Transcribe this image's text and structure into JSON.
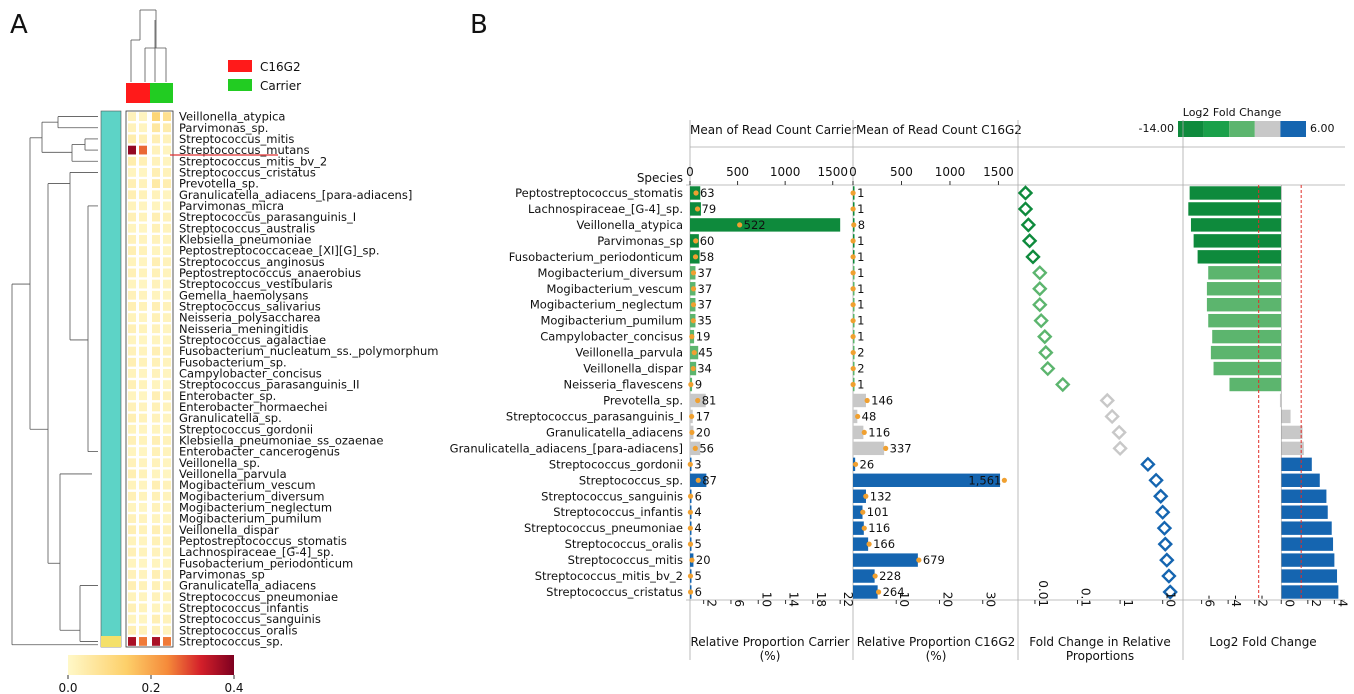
{
  "panels": {
    "a_label": "A",
    "b_label": "B"
  },
  "panel_a": {
    "legend": [
      {
        "label": "C16G2",
        "color": "#ff1a1a"
      },
      {
        "label": "Carrier",
        "color": "#22cc22"
      }
    ],
    "colorbar": {
      "min_label": "0.0",
      "mid_label": "0.2",
      "max_label": "0.4",
      "min": 0.0,
      "max": 0.4
    },
    "annotated_row": "Streptococcus_mutans",
    "heatmap_rows": [
      "Veillonella_atypica",
      "Parvimonas_sp.",
      "Streptococcus_mitis",
      "Streptococcus_mutans",
      "Streptococcus_mitis_bv_2",
      "Streptococcus_cristatus",
      "Prevotella_sp.",
      "Granulicatella_adiacens_[para-adiacens]",
      "Parvimonas_micra",
      "Streptococcus_parasanguinis_I",
      "Streptococcus_australis",
      "Klebsiella_pneumoniae",
      "Peptostreptococcaceae_[XI][G]_sp.",
      "Streptococcus_anginosus",
      "Peptostreptococcus_anaerobius",
      "Streptococcus_vestibularis",
      "Gemella_haemolysans",
      "Streptococcus_salivarius",
      "Neisseria_polysaccharea",
      "Neisseria_meningitidis",
      "Streptococcus_agalactiae",
      "Fusobacterium_nucleatum_ss._polymorphum",
      "Fusobacterium_sp.",
      "Campylobacter_concisus",
      "Streptococcus_parasanguinis_II",
      "Enterobacter_sp.",
      "Enterobacter_hormaechei",
      "Granulicatella_sp.",
      "Streptococcus_gordonii",
      "Klebsiella_pneumoniae_ss_ozaenae",
      "Enterobacter_cancerogenus",
      "Veillonella_sp.",
      "Veillonella_parvula",
      "Mogibacterium_vescum",
      "Mogibacterium_diversum",
      "Mogibacterium_neglectum",
      "Mogibacterium_pumilum",
      "Veillonella_dispar",
      "Peptostreptococcus_stomatis",
      "Lachnospiraceae_[G-4]_sp.",
      "Fusobacterium_periodonticum",
      "Parvimonas_sp",
      "Granulicatella_adiacens",
      "Streptococcus_pneumoniae",
      "Streptococcus_infantis",
      "Streptococcus_sanguinis",
      "Streptococcus_oralis",
      "Streptococcus_sp."
    ]
  },
  "chart_data": {
    "type": "bar",
    "species_header": "Species",
    "species": [
      "Peptostreptococcus_stomatis",
      "Lachnospiraceae_[G-4]_sp.",
      "Veillonella_atypica",
      "Parvimonas_sp",
      "Fusobacterium_periodonticum",
      "Mogibacterium_diversum",
      "Mogibacterium_vescum",
      "Mogibacterium_neglectum",
      "Mogibacterium_pumilum",
      "Campylobacter_concisus",
      "Veillonella_parvula",
      "Veillonella_dispar",
      "Neisseria_flavescens",
      "Prevotella_sp.",
      "Streptococcus_parasanguinis_I",
      "Granulicatella_adiacens",
      "Granulicatella_adiacens_[para-adiacens]",
      "Streptococcus_gordonii",
      "Streptococcus_sp.",
      "Streptococcus_sanguinis",
      "Streptococcus_infantis",
      "Streptococcus_pneumoniae",
      "Streptococcus_oralis",
      "Streptococcus_mitis",
      "Streptococcus_mitis_bv_2",
      "Streptococcus_cristatus"
    ],
    "group": [
      "Carrier",
      "Carrier",
      "Carrier",
      "Carrier",
      "Carrier",
      "Carrier",
      "Carrier",
      "Carrier",
      "Carrier",
      "Carrier",
      "Carrier",
      "Carrier",
      "Carrier",
      "Neutral",
      "Neutral",
      "Neutral",
      "Neutral",
      "C16G2",
      "C16G2",
      "C16G2",
      "C16G2",
      "C16G2",
      "C16G2",
      "C16G2",
      "C16G2",
      "C16G2"
    ],
    "colors": {
      "Carrier_strong": "#0e8a3c",
      "Carrier_weak": "#5cb56e",
      "Neutral": "#c8c8c8",
      "C16G2": "#1565b0",
      "dot": "#f0a030",
      "threshold": "#e0302a"
    },
    "carrier": {
      "title": "Mean of Read Count Carrier",
      "xlabel": "Relative Proportion Carrier\n(%)",
      "top_ticks": [
        "0",
        "500",
        "1000",
        "1500"
      ],
      "top_lim": [
        0,
        1650
      ],
      "bottom_ticks": [
        "2",
        "6",
        "10",
        "14",
        "18",
        "22"
      ],
      "bottom_lim": [
        0,
        23
      ],
      "read_counts": [
        63,
        79,
        522,
        60,
        58,
        37,
        37,
        37,
        35,
        19,
        45,
        34,
        9,
        81,
        17,
        20,
        56,
        3,
        87,
        6,
        4,
        4,
        5,
        20,
        5,
        6
      ],
      "count_labels": [
        "63",
        "79",
        "522",
        "60",
        "58",
        "37",
        "37",
        "37",
        "35",
        "19",
        "45",
        "34",
        "9",
        "81",
        "17",
        "20",
        "56",
        "3",
        "87",
        "6",
        "4",
        "4",
        "5",
        "20",
        "5",
        "6"
      ],
      "relative_percent": [
        1.5,
        1.6,
        22.0,
        1.3,
        1.4,
        0.8,
        0.8,
        0.8,
        0.8,
        0.6,
        1.2,
        0.9,
        0.3,
        2.3,
        0.4,
        0.5,
        1.5,
        0.1,
        2.4,
        0.2,
        0.1,
        0.1,
        0.1,
        0.5,
        0.1,
        0.2
      ]
    },
    "c16g2": {
      "title": "Mean of Read Count C16G2",
      "xlabel": "Relative Proportion C16G2\n(%)",
      "top_ticks": [
        "0",
        "500",
        "1000",
        "1500"
      ],
      "top_lim": [
        0,
        1650
      ],
      "bottom_ticks": [
        "10",
        "20",
        "30"
      ],
      "bottom_lim": [
        0,
        37
      ],
      "read_counts": [
        1,
        1,
        8,
        1,
        1,
        1,
        1,
        1,
        1,
        1,
        2,
        2,
        1,
        146,
        48,
        116,
        337,
        26,
        1561,
        132,
        101,
        116,
        166,
        679,
        228,
        264
      ],
      "count_labels": [
        "1",
        "1",
        "8",
        "1",
        "1",
        "1",
        "1",
        "1",
        "1",
        "1",
        "2",
        "2",
        "1",
        "146",
        "48",
        "116",
        "337",
        "26",
        "1,561",
        "132",
        "101",
        "116",
        "166",
        "679",
        "228",
        "264"
      ],
      "relative_percent": [
        0.05,
        0.05,
        0.2,
        0.05,
        0.05,
        0.05,
        0.05,
        0.05,
        0.05,
        0.05,
        0.1,
        0.1,
        0.05,
        3.0,
        1.0,
        2.4,
        7.2,
        0.5,
        34.0,
        3.0,
        2.2,
        2.5,
        3.5,
        15.0,
        5.0,
        5.7
      ]
    },
    "fold_change": {
      "xlabel": "Fold Change in Relative\nProportions",
      "ticks": [
        "0.01",
        "0.1",
        "1",
        "10"
      ],
      "scale": "log",
      "xlim": [
        0.004,
        30
      ],
      "values": [
        0.006,
        0.006,
        0.007,
        0.0075,
        0.009,
        0.013,
        0.013,
        0.013,
        0.014,
        0.017,
        0.018,
        0.02,
        0.045,
        0.5,
        0.65,
        0.95,
        1.0,
        4.5,
        7.0,
        9.0,
        10.0,
        11.0,
        11.5,
        12.5,
        14.0,
        15.0
      ]
    },
    "log2fc": {
      "xlabel": "Log2 Fold Change",
      "ticks": [
        "-6",
        "-4",
        "-2",
        "0",
        "2",
        "4"
      ],
      "xlim": [
        -7.4,
        4.8
      ],
      "thresholds": [
        -1.7,
        1.5
      ],
      "values": [
        -6.9,
        -7.0,
        -6.8,
        -6.6,
        -6.3,
        -5.5,
        -5.6,
        -5.6,
        -5.5,
        -5.2,
        -5.3,
        -5.1,
        -3.9,
        -0.1,
        0.7,
        1.6,
        1.7,
        2.3,
        2.9,
        3.4,
        3.5,
        3.8,
        3.9,
        4.0,
        4.2,
        4.3
      ]
    },
    "legend": {
      "title": "Log2 Fold Change",
      "min_label": "-14.00",
      "max_label": "6.00",
      "swatches": [
        "#0e8a3c",
        "#1aa04a",
        "#5cb56e",
        "#c8c8c8",
        "#1565b0"
      ]
    }
  }
}
